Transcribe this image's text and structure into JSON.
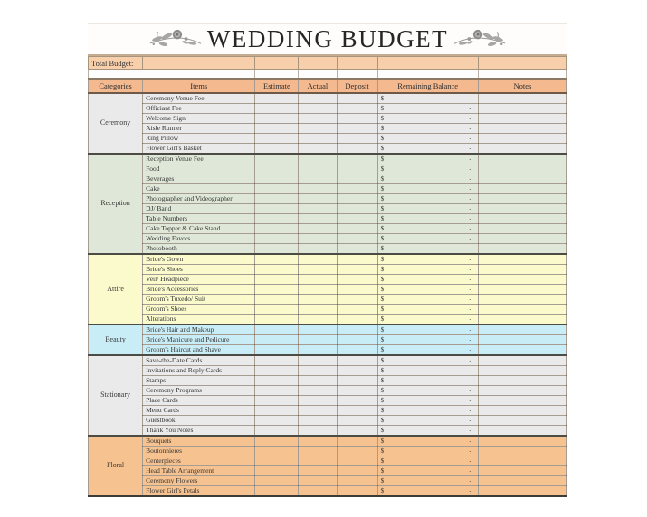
{
  "page": {
    "title": "WEDDING BUDGET",
    "ornament_icon": "floral-rose-sprig",
    "total_budget_label": "Total Budget:",
    "columns": [
      "Categories",
      "Items",
      "Estimate",
      "Actual",
      "Deposit",
      "Remaining Balance",
      "Notes"
    ],
    "currency_symbol": "$",
    "empty_amount": "-",
    "colors": {
      "total_row_band": "#f8cfab",
      "header_band": "#f4b98f",
      "ornament_gray": "#9a9a9a",
      "ceremony": "#eaeaea",
      "reception": "#dfe8d8",
      "attire": "#fafacd",
      "beauty": "#c9edf6",
      "stationary": "#eaeaea",
      "floral": "#f6c28f"
    },
    "sections": [
      {
        "name": "Ceremony",
        "color": "#eaeaea",
        "items": [
          "Ceremony Venue Fee",
          "Officiant Fee",
          "Welcome Sign",
          "Aisle Runner",
          "Ring Pillow",
          "Flower Girl's Basket"
        ]
      },
      {
        "name": "Reception",
        "color": "#dfe8d8",
        "items": [
          "Reception Venue Fee",
          "Food",
          "Beverages",
          "Cake",
          "Photographer and Videographer",
          "DJ/ Band",
          "Table Numbers",
          "Cake Topper & Cake Stand",
          "Wedding Favors",
          "Photobooth"
        ]
      },
      {
        "name": "Attire",
        "color": "#fafacd",
        "items": [
          "Bride's Gown",
          "Bride's Shoes",
          "Veil/ Headpiece",
          "Bride's Accessories",
          "Groom's Tuxedo/ Suit",
          "Groom's Shoes",
          "Alterations"
        ]
      },
      {
        "name": "Beauty",
        "color": "#c9edf6",
        "items": [
          "Bride's Hair and Makeup",
          "Bride's Manicure and Pedicure",
          "Groom's Haircut and Shave"
        ]
      },
      {
        "name": "Stationary",
        "color": "#eaeaea",
        "items": [
          "Save-the-Date Cards",
          "Invitations and Reply Cards",
          "Stamps",
          "Ceremony Programs",
          "Place Cards",
          "Menu Cards",
          "Guestbook",
          "Thank You Notes"
        ]
      },
      {
        "name": "Floral",
        "color": "#f6c28f",
        "items": [
          "Bouquets",
          "Boutonnieres",
          "Centerpieces",
          "Head Table Arrangement",
          "Ceremony Flowers",
          "Flower Girl's Petals"
        ]
      }
    ]
  }
}
